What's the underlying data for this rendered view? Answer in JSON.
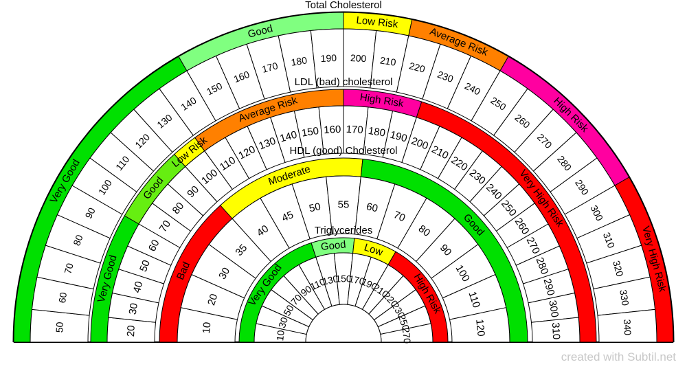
{
  "colors": {
    "green": "#00e000",
    "light_green": "#80ff80",
    "yellow_green": "#66ee11",
    "yellow": "#ffff00",
    "orange": "#ff8000",
    "pink": "#ff00a0",
    "red": "#ff0000"
  },
  "credit": "created with Subtil.net",
  "gauges": [
    {
      "title": "Total Cholesterol",
      "values": [
        "50",
        "60",
        "70",
        "80",
        "90",
        "100",
        "110",
        "120",
        "130",
        "140",
        "150",
        "160",
        "170",
        "180",
        "190",
        "200",
        "210",
        "220",
        "230",
        "240",
        "250",
        "260",
        "270",
        "280",
        "290",
        "300",
        "310",
        "320",
        "330",
        "340"
      ],
      "bands": [
        {
          "label": "Very Good",
          "color": "green",
          "from": 0,
          "to": 10
        },
        {
          "label": "Good",
          "color": "light_green",
          "from": 10,
          "to": 15
        },
        {
          "label": "Low Risk",
          "color": "yellow",
          "from": 15,
          "to": 17
        },
        {
          "label": "Average Risk",
          "color": "orange",
          "from": 17,
          "to": 20
        },
        {
          "label": "High Risk",
          "color": "pink",
          "from": 20,
          "to": 25
        },
        {
          "label": "Very High Risk",
          "color": "red",
          "from": 25,
          "to": 30
        }
      ]
    },
    {
      "title": "LDL (bad) cholesterol",
      "values": [
        "20",
        "30",
        "40",
        "50",
        "60",
        "70",
        "80",
        "90",
        "100",
        "110",
        "120",
        "130",
        "140",
        "150",
        "160",
        "170",
        "180",
        "190",
        "200",
        "210",
        "220",
        "230",
        "240",
        "250",
        "260",
        "270",
        "280",
        "290",
        "300",
        "310"
      ],
      "bands": [
        {
          "label": "Very Good",
          "color": "green",
          "from": 0,
          "to": 5
        },
        {
          "label": "Good",
          "color": "yellow_green",
          "from": 5,
          "to": 8
        },
        {
          "label": "Low Risk",
          "color": "yellow",
          "from": 8,
          "to": 9
        },
        {
          "label": "Average Risk",
          "color": "orange",
          "from": 9,
          "to": 15
        },
        {
          "label": "High Risk",
          "color": "pink",
          "from": 15,
          "to": 18
        },
        {
          "label": "Very High Risk",
          "color": "red",
          "from": 18,
          "to": 30
        }
      ]
    },
    {
      "title": "HDL (good) Cholesterol",
      "values": [
        "10",
        "20",
        "30",
        "35",
        "40",
        "45",
        "50",
        "55",
        "60",
        "70",
        "80",
        "90",
        "100",
        "110",
        "120"
      ],
      "bands": [
        {
          "label": "Bad",
          "color": "red",
          "from": 0,
          "to": 4
        },
        {
          "label": "Moderate",
          "color": "yellow",
          "from": 4,
          "to": 8
        },
        {
          "label": "Good",
          "color": "green",
          "from": 8,
          "to": 15
        }
      ]
    },
    {
      "title": "Triglycerides",
      "values": [
        "10",
        "30",
        "50",
        "70",
        "90",
        "110",
        "130",
        "150",
        "170",
        "190",
        "210",
        "220",
        "230",
        "250",
        "270"
      ],
      "bands": [
        {
          "label": "Very Good",
          "color": "green",
          "from": 0,
          "to": 6
        },
        {
          "label": "Good",
          "color": "light_green",
          "from": 6,
          "to": 8
        },
        {
          "label": "Low",
          "color": "yellow",
          "from": 8,
          "to": 10
        },
        {
          "label": "High Risk",
          "color": "red",
          "from": 10,
          "to": 15
        }
      ]
    }
  ]
}
